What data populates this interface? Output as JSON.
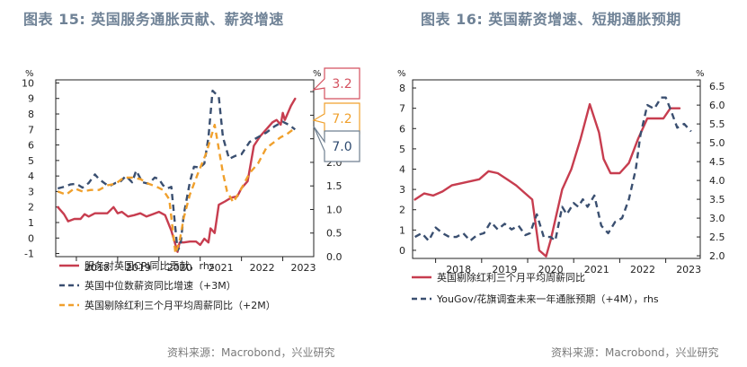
{
  "left": {
    "title": "图表 15: 英国服务通胀贡献、薪资增速",
    "source": "资料来源：Macrobond，兴业研究"
  },
  "right": {
    "title": "图表 16:   英国薪资增速、短期通胀预期",
    "source": "资料来源：Macrobond，兴业研究"
  },
  "chart_data": [
    {
      "type": "line",
      "x_ticks": [
        "2018",
        "2019",
        "2020",
        "2021",
        "2022",
        "2023"
      ],
      "x_range": [
        2017.5,
        2023.75
      ],
      "y_left": {
        "label": "%",
        "range": [
          -1.2,
          10.2
        ],
        "ticks": [
          -1,
          0,
          1,
          2,
          3,
          4,
          5,
          6,
          7,
          8,
          9,
          10
        ]
      },
      "y_right": {
        "label": "%",
        "range": [
          0,
          3.75
        ],
        "ticks": [
          "0.0",
          "0.5",
          "1.0",
          "1.5",
          "2.0",
          "2.5",
          "3.0",
          "3.5"
        ]
      },
      "callouts": [
        {
          "text": "3.2",
          "color": "#d4515f"
        },
        {
          "text": "7.2",
          "color": "#f0a02c"
        },
        {
          "text": "7.0",
          "color": "#2e4a6f"
        }
      ],
      "series": [
        {
          "name": "服务对英国CPI同比贡献，rhs",
          "axis": "right",
          "color": "#c73d4f",
          "style": "solid",
          "x": [
            2017.55,
            2017.7,
            2017.8,
            2017.95,
            2018.1,
            2018.2,
            2018.3,
            2018.45,
            2018.6,
            2018.75,
            2018.9,
            2019.0,
            2019.1,
            2019.25,
            2019.4,
            2019.55,
            2019.7,
            2019.85,
            2020.0,
            2020.15,
            2020.3,
            2020.45,
            2020.5,
            2020.6,
            2020.75,
            2020.9,
            2021.0,
            2021.1,
            2021.2,
            2021.25,
            2021.35,
            2021.45,
            2021.6,
            2021.75,
            2021.9,
            2022.0,
            2022.15,
            2022.3,
            2022.45,
            2022.6,
            2022.75,
            2022.85,
            2022.95,
            2023.0,
            2023.05,
            2023.2,
            2023.3
          ],
          "y": [
            1.05,
            0.9,
            0.75,
            0.8,
            0.8,
            0.9,
            0.85,
            0.92,
            0.92,
            0.92,
            1.05,
            0.92,
            0.95,
            0.85,
            0.88,
            0.92,
            0.85,
            0.9,
            0.95,
            0.88,
            0.55,
            0.1,
            0.3,
            0.3,
            0.32,
            0.32,
            0.25,
            0.38,
            0.3,
            0.6,
            0.5,
            1.1,
            1.17,
            1.25,
            1.28,
            1.45,
            1.6,
            2.35,
            2.55,
            2.7,
            2.85,
            2.9,
            2.8,
            3.05,
            2.9,
            3.2,
            3.35
          ]
        },
        {
          "name": "英国中位数薪资同比增速（+3M）",
          "axis": "left",
          "color": "#3a4f70",
          "style": "dash",
          "x": [
            2017.55,
            2017.7,
            2017.85,
            2018.0,
            2018.15,
            2018.3,
            2018.45,
            2018.55,
            2018.7,
            2018.8,
            2018.95,
            2019.05,
            2019.2,
            2019.35,
            2019.45,
            2019.6,
            2019.75,
            2019.9,
            2020.0,
            2020.1,
            2020.2,
            2020.3,
            2020.45,
            2020.52,
            2020.6,
            2020.75,
            2020.85,
            2021.0,
            2021.1,
            2021.2,
            2021.3,
            2021.45,
            2021.55,
            2021.7,
            2021.85,
            2022.0,
            2022.2,
            2022.4,
            2022.6,
            2022.8,
            2023.0,
            2023.15,
            2023.3
          ],
          "y": [
            3.2,
            3.3,
            3.45,
            3.5,
            3.25,
            3.55,
            4.1,
            3.8,
            3.5,
            3.35,
            3.55,
            3.6,
            4.0,
            3.6,
            4.35,
            3.6,
            3.5,
            3.9,
            3.8,
            3.4,
            3.2,
            3.3,
            -0.8,
            -0.5,
            1.5,
            3.6,
            4.6,
            4.55,
            4.8,
            6.5,
            9.5,
            9.1,
            6.5,
            5.1,
            5.3,
            5.4,
            6.2,
            6.5,
            6.8,
            7.2,
            7.5,
            7.3,
            7.0
          ]
        },
        {
          "name": "英国剔除红利三个月平均周薪同比（+2M）",
          "axis": "left",
          "color": "#f0a02c",
          "style": "dash",
          "x": [
            2017.55,
            2017.75,
            2017.95,
            2018.15,
            2018.35,
            2018.55,
            2018.75,
            2018.95,
            2019.15,
            2019.35,
            2019.55,
            2019.75,
            2019.95,
            2020.1,
            2020.25,
            2020.4,
            2020.5,
            2020.6,
            2020.75,
            2020.95,
            2021.15,
            2021.35,
            2021.55,
            2021.65,
            2021.8,
            2022.0,
            2022.2,
            2022.4,
            2022.6,
            2022.8,
            2022.95,
            2023.1,
            2023.3
          ],
          "y": [
            3.0,
            2.8,
            3.2,
            3.0,
            3.1,
            3.1,
            3.4,
            3.5,
            3.9,
            3.9,
            3.8,
            3.5,
            3.3,
            3.1,
            2.5,
            -1.0,
            -0.2,
            1.3,
            2.8,
            4.2,
            5.5,
            7.3,
            4.2,
            3.0,
            2.3,
            3.2,
            4.2,
            4.8,
            5.8,
            6.2,
            6.5,
            6.7,
            7.1
          ]
        }
      ]
    },
    {
      "type": "line",
      "x_ticks": [
        "2018",
        "2019",
        "2020",
        "2021",
        "2022",
        "2023"
      ],
      "x_range": [
        2017.5,
        2023.75
      ],
      "y_left": {
        "label": "%",
        "range": [
          -0.4,
          8.4
        ],
        "ticks": [
          0,
          1,
          2,
          3,
          4,
          5,
          6,
          7,
          8
        ]
      },
      "y_right": {
        "label": "%",
        "range": [
          1.93,
          6.67
        ],
        "ticks": [
          "2.0",
          "2.5",
          "3.0",
          "3.5",
          "4.0",
          "4.5",
          "5.0",
          "5.5",
          "6.0",
          "6.5"
        ]
      },
      "series": [
        {
          "name": "英国剔除红利三个月平均周薪同比",
          "axis": "left",
          "color": "#c73d4f",
          "style": "solid",
          "x": [
            2017.55,
            2017.75,
            2017.95,
            2018.15,
            2018.35,
            2018.55,
            2018.75,
            2018.95,
            2019.15,
            2019.35,
            2019.55,
            2019.75,
            2019.95,
            2020.1,
            2020.25,
            2020.4,
            2020.5,
            2020.6,
            2020.75,
            2020.95,
            2021.15,
            2021.35,
            2021.55,
            2021.65,
            2021.8,
            2022.0,
            2022.2,
            2022.4,
            2022.6,
            2022.8,
            2022.95,
            2023.1,
            2023.3
          ],
          "y": [
            2.5,
            2.8,
            2.7,
            2.9,
            3.2,
            3.3,
            3.4,
            3.5,
            3.9,
            3.8,
            3.5,
            3.2,
            2.8,
            2.5,
            0.0,
            -0.3,
            0.5,
            1.5,
            3.0,
            4.0,
            5.5,
            7.2,
            5.8,
            4.5,
            3.8,
            3.8,
            4.3,
            5.5,
            6.5,
            6.5,
            6.5,
            7.0,
            7.0
          ]
        },
        {
          "name": "YouGov/花旗调查未来一年通胀预期（+4M），rhs",
          "axis": "right",
          "color": "#3a4f70",
          "style": "dash",
          "x": [
            2017.55,
            2017.7,
            2017.85,
            2018.0,
            2018.15,
            2018.3,
            2018.45,
            2018.6,
            2018.75,
            2018.9,
            2019.05,
            2019.2,
            2019.35,
            2019.5,
            2019.65,
            2019.8,
            2019.95,
            2020.05,
            2020.2,
            2020.35,
            2020.5,
            2020.6,
            2020.75,
            2020.85,
            2021.0,
            2021.1,
            2021.2,
            2021.3,
            2021.45,
            2021.6,
            2021.75,
            2021.9,
            2022.05,
            2022.2,
            2022.35,
            2022.45,
            2022.6,
            2022.75,
            2022.9,
            2023.0,
            2023.1,
            2023.25,
            2023.4,
            2023.55
          ],
          "y": [
            2.5,
            2.6,
            2.4,
            2.75,
            2.6,
            2.5,
            2.5,
            2.6,
            2.4,
            2.55,
            2.6,
            2.9,
            2.7,
            2.85,
            2.7,
            2.8,
            2.55,
            2.6,
            3.1,
            2.5,
            2.5,
            2.4,
            3.3,
            3.1,
            3.4,
            3.3,
            3.5,
            3.3,
            3.6,
            2.8,
            2.6,
            2.9,
            3.0,
            3.5,
            4.3,
            5.2,
            6.0,
            5.9,
            6.2,
            6.2,
            5.9,
            5.4,
            5.5,
            5.3
          ]
        }
      ]
    }
  ]
}
